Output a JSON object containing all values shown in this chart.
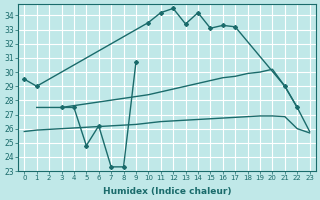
{
  "xlabel": "Humidex (Indice chaleur)",
  "background_color": "#c0e8e8",
  "grid_color": "#ffffff",
  "line_color": "#1a6b6b",
  "xlim": [
    -0.5,
    23.5
  ],
  "ylim": [
    23,
    34.8
  ],
  "yticks": [
    23,
    24,
    25,
    26,
    27,
    28,
    29,
    30,
    31,
    32,
    33,
    34
  ],
  "xticks": [
    0,
    1,
    2,
    3,
    4,
    5,
    6,
    7,
    8,
    9,
    10,
    11,
    12,
    13,
    14,
    15,
    16,
    17,
    18,
    19,
    20,
    21,
    22,
    23
  ],
  "series": [
    {
      "x": [
        0,
        1,
        10,
        11,
        12,
        13,
        14,
        15,
        16,
        17,
        21,
        22
      ],
      "y": [
        29.5,
        29.0,
        33.5,
        34.2,
        34.5,
        33.4,
        34.2,
        33.1,
        33.3,
        33.2,
        29.0,
        27.5
      ],
      "marker": "D",
      "markersize": 2.0,
      "linewidth": 1.0,
      "connect_gaps": false
    },
    {
      "x": [
        3,
        4,
        5,
        6,
        7,
        8,
        9
      ],
      "y": [
        27.5,
        27.5,
        24.8,
        26.2,
        23.3,
        23.3,
        30.7
      ],
      "marker": "D",
      "markersize": 2.0,
      "linewidth": 1.0,
      "connect_gaps": false
    },
    {
      "x": [
        0,
        1,
        2,
        3,
        4,
        5,
        6,
        7,
        8,
        9,
        10,
        11,
        12,
        13,
        14,
        15,
        16,
        17,
        18,
        19,
        20,
        21,
        22,
        23
      ],
      "y": [
        25.8,
        25.9,
        25.95,
        26.0,
        26.05,
        26.1,
        26.15,
        26.2,
        26.25,
        26.3,
        26.4,
        26.5,
        26.55,
        26.6,
        26.65,
        26.7,
        26.75,
        26.8,
        26.85,
        26.9,
        26.9,
        26.85,
        26.0,
        25.7
      ],
      "marker": null,
      "markersize": 0,
      "linewidth": 1.0,
      "connect_gaps": false
    },
    {
      "x": [
        1,
        3,
        10,
        11,
        12,
        13,
        14,
        15,
        16,
        17,
        18,
        19,
        20,
        21,
        22,
        23
      ],
      "y": [
        27.5,
        27.5,
        28.4,
        28.6,
        28.8,
        29.0,
        29.2,
        29.4,
        29.6,
        29.7,
        29.9,
        30.0,
        30.2,
        29.0,
        27.5,
        25.8
      ],
      "marker": null,
      "markersize": 0,
      "linewidth": 1.0,
      "connect_gaps": false
    }
  ]
}
